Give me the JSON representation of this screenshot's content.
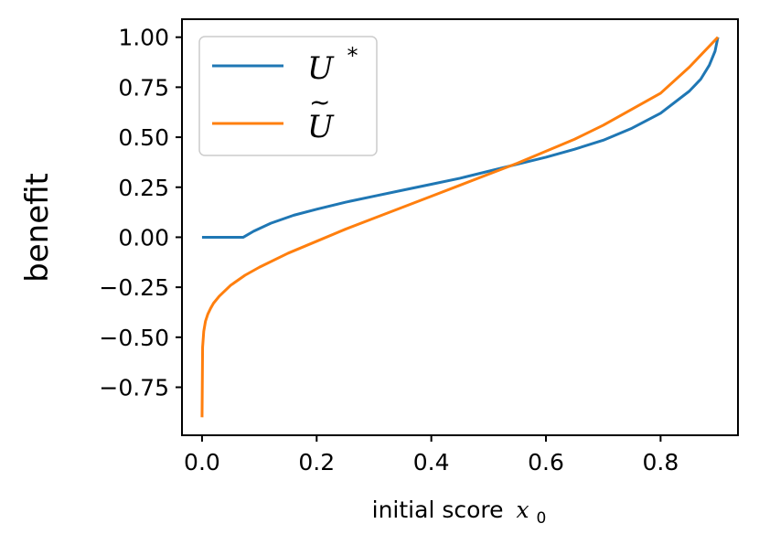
{
  "chart_data": {
    "type": "line",
    "title": "",
    "xlabel": "initial score",
    "xlabel_math": "x",
    "xlabel_subscript": "0",
    "ylabel": "benefit",
    "xlim": [
      -0.035,
      0.935
    ],
    "ylim": [
      -0.99,
      1.09
    ],
    "xticks": [
      0.0,
      0.2,
      0.4,
      0.6,
      0.8
    ],
    "xtick_labels": [
      "0.0",
      "0.2",
      "0.4",
      "0.6",
      "0.8"
    ],
    "yticks": [
      1.0,
      0.75,
      0.5,
      0.25,
      0.0,
      -0.25,
      -0.5,
      -0.75
    ],
    "ytick_labels": [
      "1.00",
      "0.75",
      "0.50",
      "0.25",
      "0.00",
      "−0.25",
      "−0.50",
      "−0.75"
    ],
    "grid": false,
    "legend_position": "top-left",
    "series": [
      {
        "name": "U",
        "name_superscript": "*",
        "color": "#1f77b4",
        "x": [
          0.0,
          0.02,
          0.04,
          0.06,
          0.072,
          0.09,
          0.12,
          0.16,
          0.2,
          0.25,
          0.3,
          0.35,
          0.4,
          0.45,
          0.5,
          0.55,
          0.6,
          0.65,
          0.7,
          0.75,
          0.8,
          0.85,
          0.87,
          0.885,
          0.895,
          0.9
        ],
        "y": [
          0.0,
          0.0,
          0.0,
          0.0,
          0.0,
          0.03,
          0.07,
          0.11,
          0.14,
          0.175,
          0.205,
          0.235,
          0.265,
          0.295,
          0.33,
          0.365,
          0.4,
          0.44,
          0.485,
          0.545,
          0.62,
          0.73,
          0.79,
          0.86,
          0.93,
          1.0
        ]
      },
      {
        "name": "U",
        "name_accent": "~",
        "color": "#ff7f0e",
        "x": [
          0.0,
          0.001,
          0.003,
          0.006,
          0.01,
          0.015,
          0.02,
          0.03,
          0.05,
          0.075,
          0.1,
          0.15,
          0.2,
          0.25,
          0.3,
          0.35,
          0.4,
          0.45,
          0.5,
          0.55,
          0.6,
          0.65,
          0.7,
          0.75,
          0.8,
          0.85,
          0.9
        ],
        "y": [
          -0.9,
          -0.55,
          -0.47,
          -0.42,
          -0.385,
          -0.355,
          -0.33,
          -0.295,
          -0.24,
          -0.19,
          -0.15,
          -0.08,
          -0.02,
          0.04,
          0.095,
          0.15,
          0.205,
          0.26,
          0.315,
          0.37,
          0.43,
          0.49,
          0.56,
          0.64,
          0.72,
          0.85,
          1.0
        ]
      }
    ]
  }
}
